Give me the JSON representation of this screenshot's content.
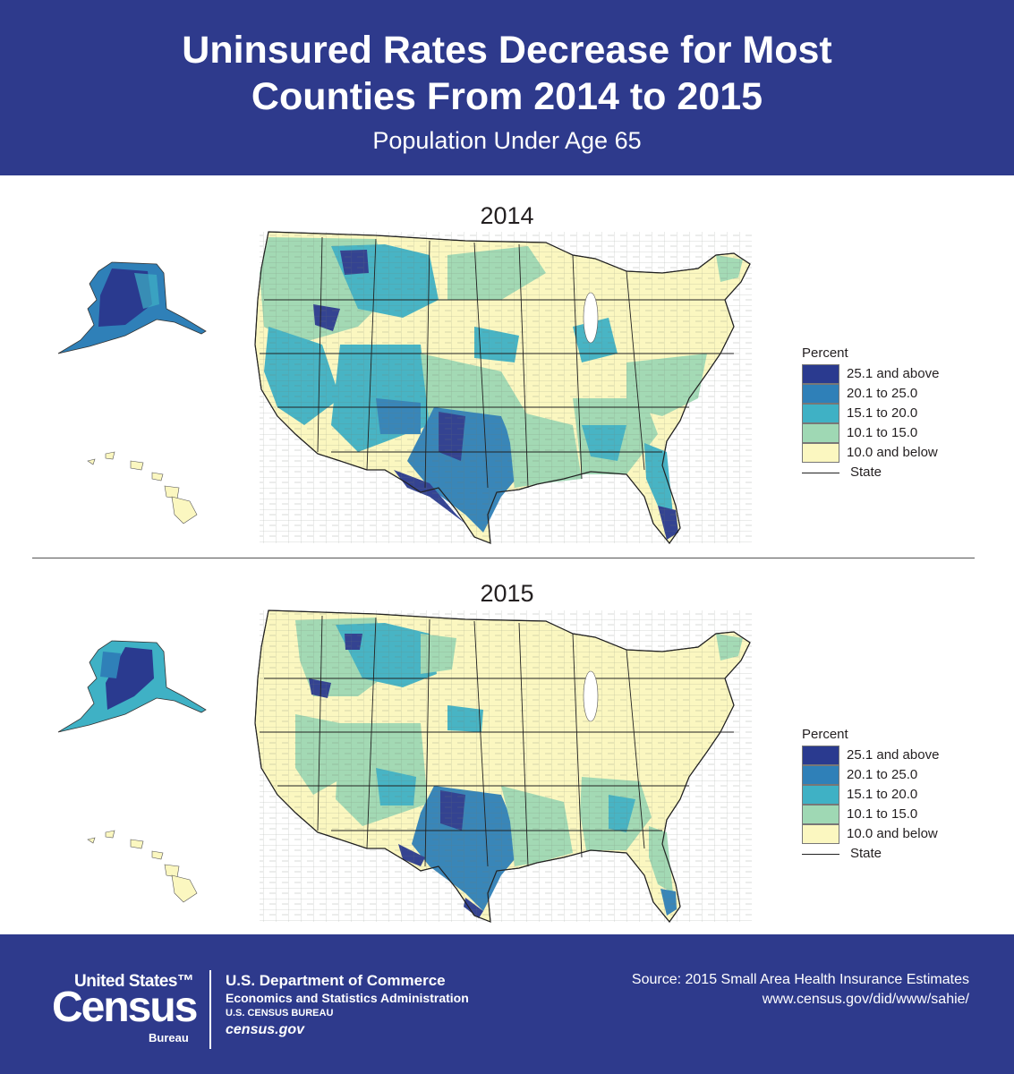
{
  "header": {
    "title_line1": "Uninsured Rates Decrease for Most",
    "title_line2": "Counties From 2014 to 2015",
    "subtitle": "Population Under Age 65"
  },
  "maps": [
    {
      "year": "2014"
    },
    {
      "year": "2015"
    }
  ],
  "legend": {
    "title": "Percent",
    "items": [
      {
        "label": "25.1 and above",
        "color": "#2a3a8f"
      },
      {
        "label": "20.1 to 25.0",
        "color": "#2f80b8"
      },
      {
        "label": "15.1 to 20.0",
        "color": "#3fb1c5"
      },
      {
        "label": "10.1 to 15.0",
        "color": "#9fd8b4"
      },
      {
        "label": "10.0 and below",
        "color": "#fbf7c0"
      }
    ],
    "state_label": "State"
  },
  "footer": {
    "logo_top": "United States™",
    "logo_main": "Census",
    "logo_bureau": "Bureau",
    "dept_line1": "U.S. Department of Commerce",
    "dept_line2": "Economics and Statistics Administration",
    "dept_line3": "U.S. CENSUS BUREAU",
    "dept_line4": "census.gov",
    "source_line1": "Source: 2015 Small Area Health Insurance Estimates",
    "source_line2": "www.census.gov/did/www/sahie/"
  }
}
